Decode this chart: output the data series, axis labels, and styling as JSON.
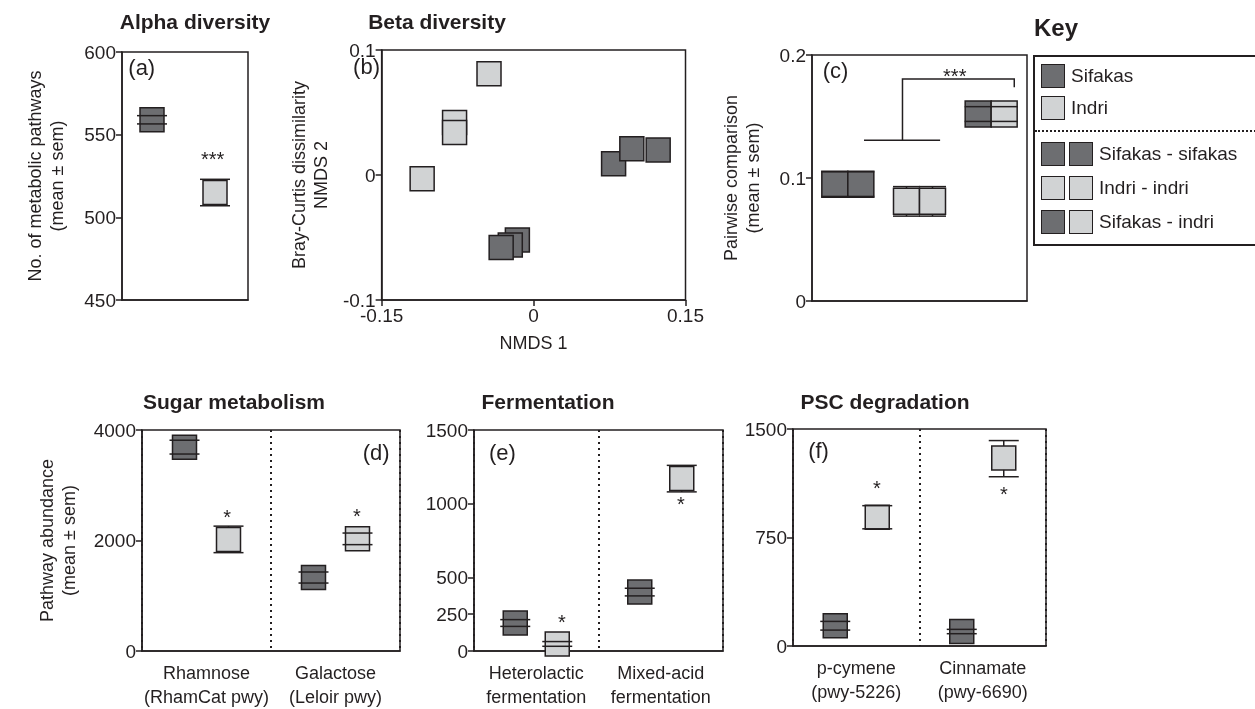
{
  "chart_data": [
    {
      "type": "scatter",
      "title": "Alpha diversity",
      "ylabel": "No. of metabolic pathways\n(mean ± sem)",
      "categories": [
        null
      ],
      "series": [
        {
          "color": "#6d6e71",
          "values": [
            559
          ],
          "errors": [
            2.5
          ]
        },
        {
          "color": "#d1d3d4",
          "values": [
            515
          ],
          "errors": [
            8
          ]
        }
      ],
      "ylim": [
        450,
        600
      ],
      "yticks": [
        450,
        500,
        550,
        600
      ],
      "marker": "square",
      "annotations": [
        "(a)",
        "***"
      ]
    },
    {
      "type": "scatter",
      "title": "Beta diversity",
      "xlabel": "NMDS 1",
      "ylabel": "Bray-Curtis dissimilarity\nNMDS 2",
      "series": [
        {
          "color": "#d1d3d4",
          "x": [
            -0.11,
            -0.078,
            -0.078,
            -0.044
          ],
          "values": [
            -0.003,
            0.042,
            0.034,
            0.081
          ]
        },
        {
          "color": "#6d6e71",
          "x": [
            0.079,
            0.097,
            0.123,
            -0.016,
            -0.023,
            -0.032
          ],
          "values": [
            0.009,
            0.021,
            0.02,
            -0.052,
            -0.056,
            -0.058
          ]
        }
      ],
      "xlim": [
        -0.15,
        0.15
      ],
      "xticks": [
        -0.15,
        0,
        0.15
      ],
      "ylim": [
        -0.1,
        0.1
      ],
      "yticks": [
        -0.1,
        0,
        0.1
      ],
      "marker": "square",
      "annotations": [
        "(b)"
      ]
    },
    {
      "type": "scatter",
      "ylabel": "Pairwise comparison\n(mean ± sem)",
      "categories": [
        null,
        null,
        null
      ],
      "series": [
        {
          "colors": [
            "#6d6e71",
            "#d1d3d4",
            "#6d6e71"
          ],
          "values": [
            0.095,
            0.081,
            0.152
          ],
          "errors": [
            0.01,
            0.012,
            0.006
          ]
        },
        {
          "colors": [
            "#6d6e71",
            "#d1d3d4",
            "#d1d3d4"
          ],
          "values": [
            0.095,
            0.081,
            0.152
          ],
          "errors": [
            0.01,
            0.012,
            0.006
          ]
        }
      ],
      "ylim": [
        0,
        0.2
      ],
      "yticks": [
        0,
        0.1,
        0.2
      ],
      "marker": "square",
      "annotations": [
        "(c)",
        "***"
      ]
    },
    {
      "type": "other",
      "title": "Key",
      "annotations": [
        "Sifakas",
        "Indri",
        "Sifakas - sifakas",
        "Indri - indri",
        "Sifakas - indri"
      ]
    },
    {
      "type": "scatter",
      "title": "Sugar metabolism",
      "ylabel": "Pathway abundance\n(mean ± sem)",
      "categories": [
        "Rhamnose\n(RhamCat pwy)",
        "Galactose\n(Leloir pwy)"
      ],
      "series": [
        {
          "color": "#6d6e71",
          "values": [
            3690,
            1330
          ],
          "errors": [
            125,
            100
          ]
        },
        {
          "color": "#d1d3d4",
          "values": [
            2020,
            2030
          ],
          "errors": [
            240,
            105
          ]
        }
      ],
      "ylim": [
        0,
        4000
      ],
      "yticks": [
        0,
        2000,
        4000
      ],
      "marker": "square",
      "grid": "x",
      "annotations": [
        "(d)",
        "*",
        "*"
      ]
    },
    {
      "type": "scatter",
      "title": "Fermentation",
      "categories": [
        "Heterolactic\nfermentation",
        "Mixed-acid\nfermentation"
      ],
      "series": [
        {
          "color": "#6d6e71",
          "values": [
            190,
            400
          ],
          "errors": [
            23,
            26
          ]
        },
        {
          "color": "#d1d3d4",
          "values": [
            48,
            1170
          ],
          "errors": [
            16,
            90
          ]
        }
      ],
      "ylim": [
        0,
        1500
      ],
      "yticks": [
        0,
        250,
        500,
        1000,
        1500
      ],
      "marker": "square",
      "grid": "x",
      "annotations": [
        "(e)",
        "*",
        "*"
      ]
    },
    {
      "type": "scatter",
      "title": "PSC degradation",
      "categories": [
        "p-cymene\n(pwy-5226)",
        "Cinnamate\n(pwy-6690)"
      ],
      "series": [
        {
          "color": "#6d6e71",
          "values": [
            140,
            100
          ],
          "errors": [
            30,
            15
          ]
        },
        {
          "color": "#d1d3d4",
          "values": [
            890,
            1300
          ],
          "errors": [
            80,
            [
              1170,
              1420
            ]
          ]
        }
      ],
      "ylim": [
        0,
        1500
      ],
      "yticks": [
        0,
        750,
        1500
      ],
      "marker": "square",
      "grid": "x",
      "annotations": [
        "(f)",
        "*",
        "*"
      ]
    }
  ]
}
